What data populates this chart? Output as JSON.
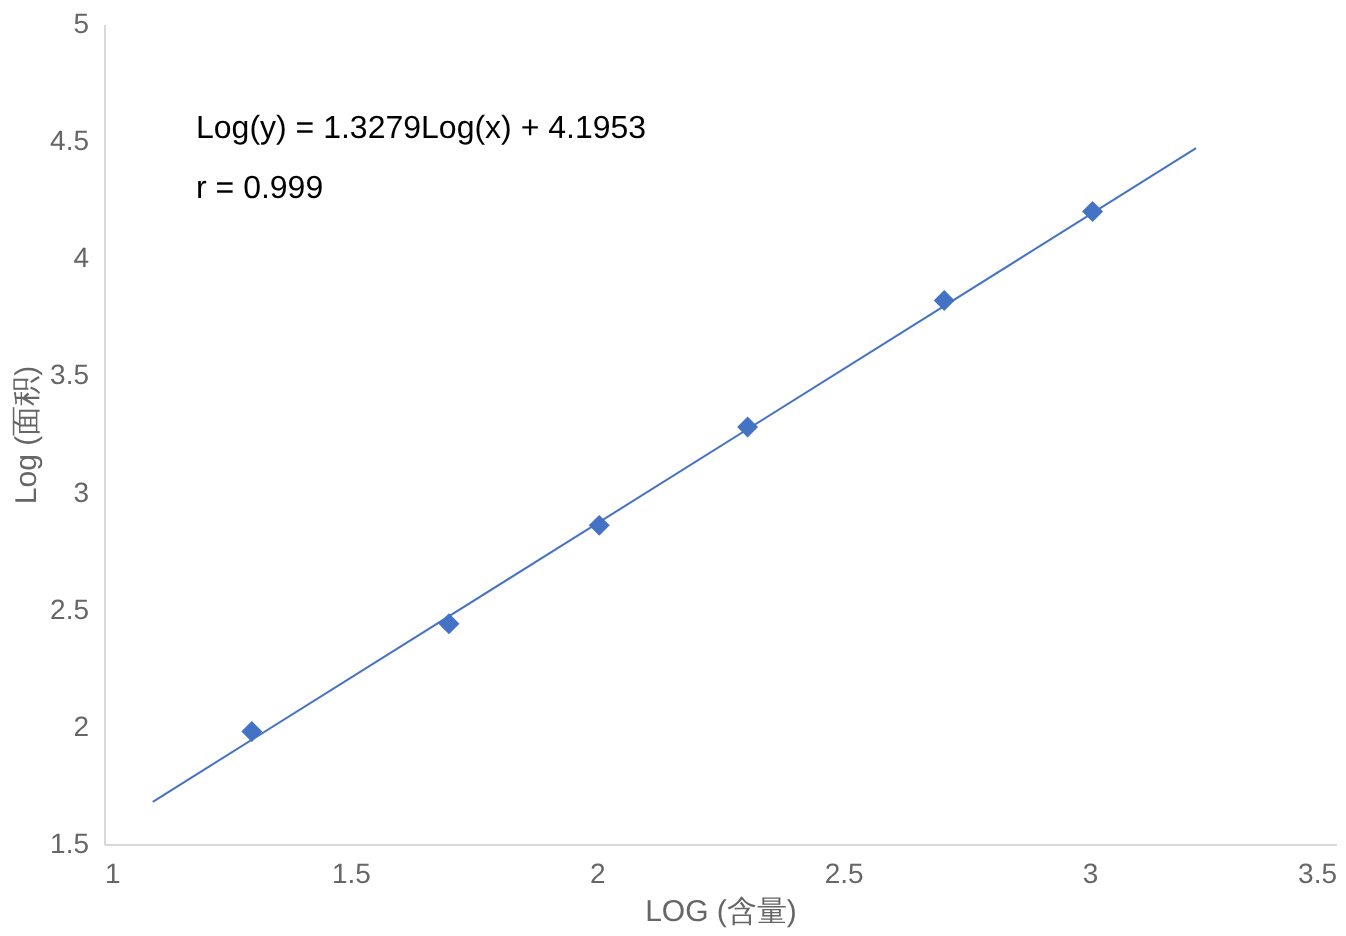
{
  "chart_data": {
    "type": "scatter",
    "xlabel": "LOG (含量)",
    "ylabel": "Log (面积)",
    "xlim": [
      1,
      3.5
    ],
    "xticks": [
      1,
      1.5,
      2,
      2.5,
      3,
      3.5
    ],
    "ylim": [
      1.5,
      5
    ],
    "yticks": [
      1.5,
      2,
      2.5,
      3,
      3.5,
      4,
      4.5,
      5
    ],
    "grid": false,
    "annotations": [
      "Log(y) = 1.3279Log(x) + 4.1953",
      "r = 0.999"
    ],
    "series": [
      {
        "marker": "diamond",
        "color": "#4472c4",
        "x": [
          1.3,
          1.7,
          2.005,
          2.306,
          2.705,
          3.006
        ],
        "values": [
          1.98,
          2.44,
          2.86,
          3.28,
          3.82,
          4.2
        ]
      },
      {
        "type": "line",
        "marker": "none",
        "line_style": "solid",
        "color": "#4472c4",
        "x": [
          1.099,
          3.216
        ],
        "values": [
          1.68,
          4.47
        ]
      }
    ]
  }
}
